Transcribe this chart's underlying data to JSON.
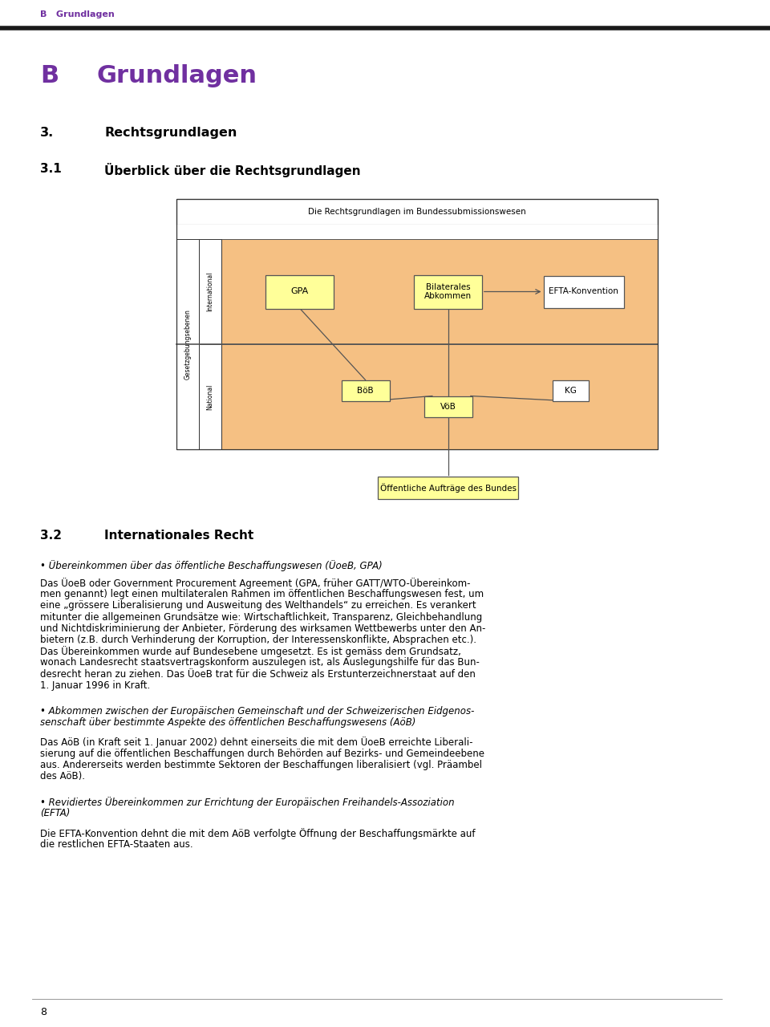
{
  "page_bg": "#ffffff",
  "header_text": "B   Grundlagen",
  "header_color": "#7030a0",
  "title_B": "B",
  "title_Grundlagen": "Grundlagen",
  "title_color": "#7030a0",
  "section3_label": "3.",
  "section3_text": "Rechtsgrundlagen",
  "section31_label": "3.1",
  "section31_text": "Überblick über die Rechtsgrundlagen",
  "section32_label": "3.2",
  "section32_text": "Internationales Recht",
  "diagram_title": "Die Rechtsgrundlagen im Bundessubmissionswesen",
  "left_label_vert": "Gesetzgebungsebenen",
  "left_label_intl": "International",
  "left_label_natl": "National",
  "box_GPA": "GPA",
  "box_Bilaterales": "Bilaterales\nAbkommen",
  "box_EFTA": "EFTA-Konvention",
  "box_BoB": "BöB",
  "box_VoB": "VöB",
  "box_KG": "KG",
  "box_public": "Öffentliche Aufträge des Bundes",
  "orange_bg": "#f5c083",
  "yellow_box": "#ffff99",
  "white_box": "#ffffff",
  "box_border": "#a08020",
  "bullet1_italic": "• Übereinkommen über das öffentliche Beschaffungswesen (ÜoeB, GPA)",
  "para1": "Das ÜoeB oder Government Procurement Agreement (GPA, früher GATT/WTO-Übereinkom-\nmen genannt) legt einen multilateralen Rahmen im öffentlichen Beschaffungswesen fest, um\neine „grössere Liberalisierung und Ausweitung des Welthandels“ zu erreichen. Es verankert\nmitunter die allgemeinen Grundsätze wie: Wirtschaftlichkeit, Transparenz, Gleichbehandlung\nund Nichtdiskriminierung der Anbieter, Förderung des wirksamen Wettbewerbs unter den An-\nbietern (z.B. durch Verhinderung der Korruption, der Interessenskonflikte, Absprachen etc.).\nDas Übereinkommen wurde auf Bundesebene umgesetzt. Es ist gemäss dem Grundsatz,\nwonach Landesrecht staatsvertragskonform auszulegen ist, als Auslegungshilfe für das Bun-\ndesrecht heran zu ziehen. Das ÜoeB trat für die Schweiz als Erstunterzeichnerstaat auf den\n1. Januar 1996 in Kraft.",
  "bullet2_italic": "• Abkommen zwischen der Europäischen Gemeinschaft und der Schweizerischen Eidgenos-\nsenschaft über bestimmte Aspekte des öffentlichen Beschaffungswesens (AöB)",
  "para2": "Das AöB (in Kraft seit 1. Januar 2002) dehnt einerseits die mit dem ÜoeB erreichte Liberali-\nsierung auf die öffentlichen Beschaffungen durch Behörden auf Bezirks- und Gemeindeebene\naus. Andererseits werden bestimmte Sektoren der Beschaffungen liberalisiert (vgl. Präambel\ndes AöB).",
  "bullet3_italic": "• Revidiertes Übereinkommen zur Errichtung der Europäischen Freihandels-Assoziation\n(EFTA)",
  "para3": "Die EFTA-Konvention dehnt die mit dem AöB verfolgte Öffnung der Beschaffungsmärkte auf\ndie restlichen EFTA-Staaten aus.",
  "footer_text": "8"
}
